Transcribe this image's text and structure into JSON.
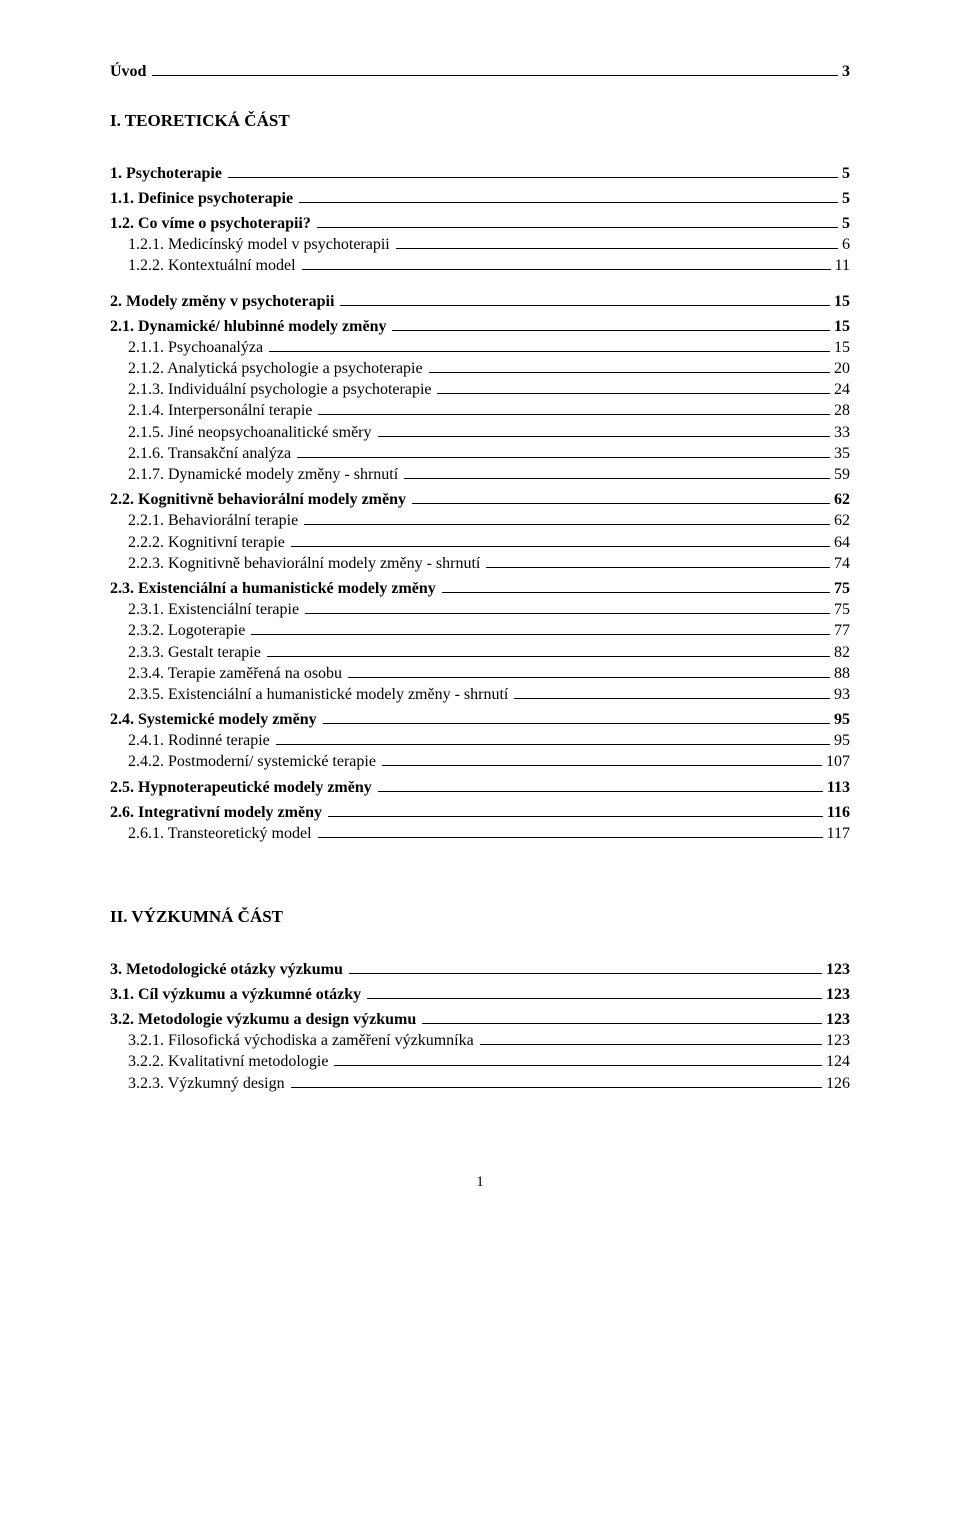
{
  "pageNumber": "1",
  "rows": [
    {
      "type": "entry",
      "label": "Úvod",
      "page": "3",
      "bold": true,
      "indent": 0
    },
    {
      "type": "gap",
      "size": "lg"
    },
    {
      "type": "title",
      "label": "I. TEORETICKÁ ČÁST"
    },
    {
      "type": "gap",
      "size": "lg"
    },
    {
      "type": "entry",
      "label": "1. Psychoterapie",
      "page": "5",
      "bold": true,
      "indent": 0
    },
    {
      "type": "gap",
      "size": "sm"
    },
    {
      "type": "entry",
      "label": "1.1. Definice psychoterapie",
      "page": "5",
      "bold": true,
      "indent": 1
    },
    {
      "type": "gap",
      "size": "sm"
    },
    {
      "type": "entry",
      "label": "1.2. Co víme o psychoterapii?",
      "page": "5",
      "bold": true,
      "indent": 1
    },
    {
      "type": "entry",
      "label": "1.2.1. Medicínský model v psychoterapii",
      "page": "6",
      "bold": false,
      "indent": 2
    },
    {
      "type": "entry",
      "label": "1.2.2. Kontextuální model",
      "page": "11",
      "bold": false,
      "indent": 2
    },
    {
      "type": "gap",
      "size": "md"
    },
    {
      "type": "entry",
      "label": "2. Modely změny v psychoterapii",
      "page": "15",
      "bold": true,
      "indent": 0
    },
    {
      "type": "gap",
      "size": "sm"
    },
    {
      "type": "entry",
      "label": "2.1. Dynamické/ hlubinné modely změny",
      "page": "15",
      "bold": true,
      "indent": 1
    },
    {
      "type": "entry",
      "label": "2.1.1. Psychoanalýza",
      "page": "15",
      "bold": false,
      "indent": 2
    },
    {
      "type": "entry",
      "label": "2.1.2. Analytická psychologie a psychoterapie",
      "page": "20",
      "bold": false,
      "indent": 2
    },
    {
      "type": "entry",
      "label": "2.1.3. Individuální psychologie a psychoterapie",
      "page": "24",
      "bold": false,
      "indent": 2
    },
    {
      "type": "entry",
      "label": "2.1.4. Interpersonální terapie",
      "page": "28",
      "bold": false,
      "indent": 2
    },
    {
      "type": "entry",
      "label": "2.1.5. Jiné neopsychoanalitické směry",
      "page": "33",
      "bold": false,
      "indent": 2
    },
    {
      "type": "entry",
      "label": "2.1.6. Transakční analýza",
      "page": "35",
      "bold": false,
      "indent": 2
    },
    {
      "type": "entry",
      "label": "2.1.7. Dynamické modely změny - shrnutí",
      "page": "59",
      "bold": false,
      "indent": 2
    },
    {
      "type": "gap",
      "size": "sm"
    },
    {
      "type": "entry",
      "label": "2.2. Kognitivně behaviorální modely změny",
      "page": "62",
      "bold": true,
      "indent": 1
    },
    {
      "type": "entry",
      "label": "2.2.1. Behaviorální terapie",
      "page": "62",
      "bold": false,
      "indent": 2
    },
    {
      "type": "entry",
      "label": "2.2.2. Kognitivní terapie",
      "page": "64",
      "bold": false,
      "indent": 2
    },
    {
      "type": "entry",
      "label": "2.2.3. Kognitivně behaviorální modely změny - shrnutí",
      "page": "74",
      "bold": false,
      "indent": 2
    },
    {
      "type": "gap",
      "size": "sm"
    },
    {
      "type": "entry",
      "label": "2.3. Existenciální a humanistické modely změny",
      "page": "75",
      "bold": true,
      "indent": 1
    },
    {
      "type": "entry",
      "label": "2.3.1. Existenciální terapie",
      "page": "75",
      "bold": false,
      "indent": 2
    },
    {
      "type": "entry",
      "label": "2.3.2. Logoterapie",
      "page": "77",
      "bold": false,
      "indent": 2
    },
    {
      "type": "entry",
      "label": "2.3.3. Gestalt terapie",
      "page": "82",
      "bold": false,
      "indent": 2
    },
    {
      "type": "entry",
      "label": "2.3.4. Terapie zaměřená na osobu",
      "page": "88",
      "bold": false,
      "indent": 2
    },
    {
      "type": "entry",
      "label": "2.3.5. Existenciální a humanistické modely změny - shrnutí",
      "page": "93",
      "bold": false,
      "indent": 2
    },
    {
      "type": "gap",
      "size": "sm"
    },
    {
      "type": "entry",
      "label": "2.4. Systemické modely změny",
      "page": "95",
      "bold": true,
      "indent": 1
    },
    {
      "type": "entry",
      "label": "2.4.1. Rodinné terapie",
      "page": "95",
      "bold": false,
      "indent": 2
    },
    {
      "type": "entry",
      "label": "2.4.2. Postmoderní/ systemické terapie",
      "page": "107",
      "bold": false,
      "indent": 2
    },
    {
      "type": "gap",
      "size": "sm"
    },
    {
      "type": "entry",
      "label": "2.5. Hypnoterapeutické modely změny",
      "page": "113",
      "bold": true,
      "indent": 1
    },
    {
      "type": "gap",
      "size": "sm"
    },
    {
      "type": "entry",
      "label": "2.6. Integrativní modely změny",
      "page": "116",
      "bold": true,
      "indent": 1
    },
    {
      "type": "entry",
      "label": "2.6.1. Transteoretický model",
      "page": "117",
      "bold": false,
      "indent": 2
    },
    {
      "type": "gap",
      "size": "xl"
    },
    {
      "type": "title",
      "label": "II. VÝZKUMNÁ ČÁST"
    },
    {
      "type": "gap",
      "size": "lg"
    },
    {
      "type": "entry",
      "label": "3. Metodologické otázky výzkumu",
      "page": "123",
      "bold": true,
      "indent": 0
    },
    {
      "type": "gap",
      "size": "sm"
    },
    {
      "type": "entry",
      "label": "3.1. Cíl výzkumu a výzkumné otázky",
      "page": "123",
      "bold": true,
      "indent": 1
    },
    {
      "type": "gap",
      "size": "sm"
    },
    {
      "type": "entry",
      "label": "3.2. Metodologie výzkumu a design výzkumu",
      "page": "123",
      "bold": true,
      "indent": 1
    },
    {
      "type": "entry",
      "label": "3.2.1. Filosofická východiska a zaměření výzkumníka",
      "page": "123",
      "bold": false,
      "indent": 2
    },
    {
      "type": "entry",
      "label": "3.2.2. Kvalitativní metodologie",
      "page": "124",
      "bold": false,
      "indent": 2
    },
    {
      "type": "entry",
      "label": "3.2.3. Výzkumný design",
      "page": "126",
      "bold": false,
      "indent": 2
    }
  ]
}
